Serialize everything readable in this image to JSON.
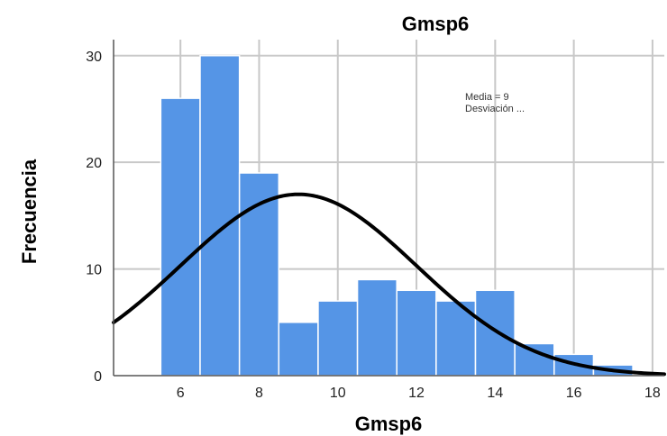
{
  "chart_data": {
    "type": "bar",
    "title": "Gmsp6",
    "xlabel": "Gmsp6",
    "ylabel": "Frecuencia",
    "x_ticks": [
      6,
      8,
      10,
      12,
      14,
      16,
      18
    ],
    "y_ticks": [
      0,
      10,
      20,
      30
    ],
    "xlim": [
      4.3,
      18.3
    ],
    "ylim": [
      0,
      31.5
    ],
    "bins": [
      {
        "x0": 5.5,
        "x1": 6.5,
        "value": 26
      },
      {
        "x0": 6.5,
        "x1": 7.5,
        "value": 30
      },
      {
        "x0": 7.5,
        "x1": 8.5,
        "value": 19
      },
      {
        "x0": 8.5,
        "x1": 9.5,
        "value": 5
      },
      {
        "x0": 9.5,
        "x1": 10.5,
        "value": 7
      },
      {
        "x0": 10.5,
        "x1": 11.5,
        "value": 9
      },
      {
        "x0": 11.5,
        "x1": 12.5,
        "value": 8
      },
      {
        "x0": 12.5,
        "x1": 13.5,
        "value": 7
      },
      {
        "x0": 13.5,
        "x1": 14.5,
        "value": 8
      },
      {
        "x0": 14.5,
        "x1": 15.5,
        "value": 3
      },
      {
        "x0": 15.5,
        "x1": 16.5,
        "value": 2
      },
      {
        "x0": 16.5,
        "x1": 17.5,
        "value": 1
      }
    ],
    "normal_curve": {
      "mean": 9,
      "sd": 3,
      "peak": 17
    },
    "annotations": [
      "Media = 9",
      "Desviación ..."
    ],
    "grid": "vertical",
    "colors": {
      "bar": "#5595e6",
      "bar_edge": "#ffffff",
      "curve": "#000000",
      "grid": "#c8c8c8",
      "axis": "#555555"
    }
  }
}
